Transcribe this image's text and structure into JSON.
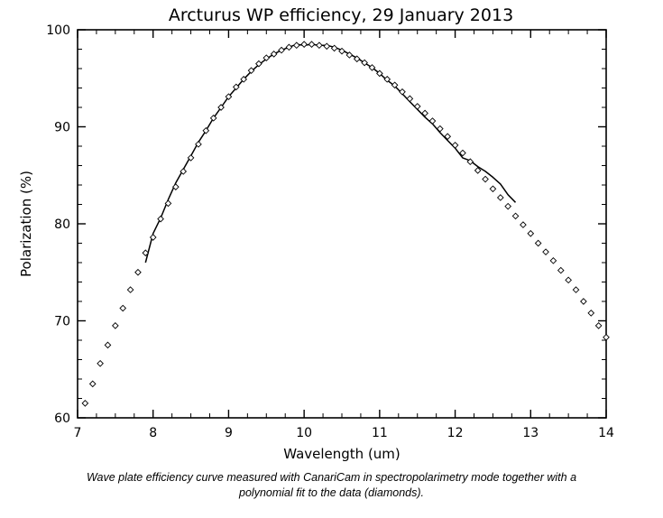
{
  "caption": {
    "line1": "Wave plate efficiency curve measured with CanariCam in spectropolarimetry mode together with a",
    "line2": "polynomial fit to the data (diamonds)."
  },
  "chart_data": {
    "type": "scatter",
    "title": "Arcturus WP efficiency, 29 January 2013",
    "xlabel": "Wavelength (um)",
    "ylabel": "Polarization (%)",
    "xlim": [
      7,
      14
    ],
    "ylim": [
      60,
      100
    ],
    "xticks": [
      7,
      8,
      9,
      10,
      11,
      12,
      13,
      14
    ],
    "yticks": [
      60,
      70,
      80,
      90,
      100
    ],
    "grid": false,
    "series": [
      {
        "kind": "line",
        "x": [
          7.9,
          8.0,
          8.1,
          8.2,
          8.3,
          8.4,
          8.5,
          8.6,
          8.7,
          8.8,
          8.9,
          9.0,
          9.1,
          9.2,
          9.3,
          9.4,
          9.5,
          9.6,
          9.7,
          9.8,
          9.9,
          10.0,
          10.1,
          10.2,
          10.3,
          10.4,
          10.5,
          10.6,
          10.7,
          10.8,
          10.9,
          11.0,
          11.1,
          11.2,
          11.3,
          11.4,
          11.5,
          11.6,
          11.7,
          11.8,
          11.9,
          12.0,
          12.1,
          12.2,
          12.3,
          12.4,
          12.5,
          12.6,
          12.7,
          12.8
        ],
        "y": [
          76.0,
          79.0,
          80.6,
          82.5,
          84.2,
          85.6,
          87.0,
          88.4,
          89.6,
          90.9,
          92.0,
          93.1,
          94.0,
          94.9,
          95.7,
          96.4,
          97.0,
          97.5,
          97.9,
          98.2,
          98.5,
          98.4,
          98.5,
          98.4,
          98.4,
          98.2,
          97.9,
          97.5,
          97.1,
          96.6,
          96.1,
          95.5,
          94.8,
          94.2,
          93.4,
          92.6,
          91.8,
          91.0,
          90.3,
          89.4,
          88.6,
          87.8,
          86.8,
          86.5,
          85.9,
          85.4,
          84.8,
          84.1,
          83.0,
          82.2
        ]
      },
      {
        "kind": "scatter",
        "marker": "diamond",
        "x": [
          7.1,
          7.2,
          7.3,
          7.4,
          7.5,
          7.6,
          7.7,
          7.8,
          7.9,
          8.0,
          8.1,
          8.2,
          8.3,
          8.4,
          8.5,
          8.6,
          8.7,
          8.8,
          8.9,
          9.0,
          9.1,
          9.2,
          9.3,
          9.4,
          9.5,
          9.6,
          9.7,
          9.8,
          9.9,
          10.0,
          10.1,
          10.2,
          10.3,
          10.4,
          10.5,
          10.6,
          10.7,
          10.8,
          10.9,
          11.0,
          11.1,
          11.2,
          11.3,
          11.4,
          11.5,
          11.6,
          11.7,
          11.8,
          11.9,
          12.0,
          12.1,
          12.2,
          12.3,
          12.4,
          12.5,
          12.6,
          12.7,
          12.8,
          12.9,
          13.0,
          13.1,
          13.2,
          13.3,
          13.4,
          13.5,
          13.6,
          13.7,
          13.8,
          13.9,
          14.0
        ],
        "y": [
          61.5,
          63.5,
          65.6,
          67.5,
          69.5,
          71.3,
          73.2,
          75.0,
          77.0,
          78.6,
          80.5,
          82.1,
          83.8,
          85.4,
          86.8,
          88.2,
          89.6,
          90.9,
          92.0,
          93.1,
          94.1,
          94.9,
          95.8,
          96.5,
          97.1,
          97.5,
          97.9,
          98.2,
          98.4,
          98.5,
          98.5,
          98.4,
          98.3,
          98.1,
          97.8,
          97.4,
          97.0,
          96.6,
          96.1,
          95.5,
          94.9,
          94.3,
          93.6,
          92.9,
          92.1,
          91.4,
          90.6,
          89.8,
          89.0,
          88.1,
          87.3,
          86.4,
          85.5,
          84.6,
          83.6,
          82.7,
          81.8,
          80.8,
          79.9,
          79.0,
          78.0,
          77.1,
          76.2,
          75.2,
          74.2,
          73.2,
          72.0,
          70.8,
          69.5,
          68.3
        ]
      }
    ]
  }
}
